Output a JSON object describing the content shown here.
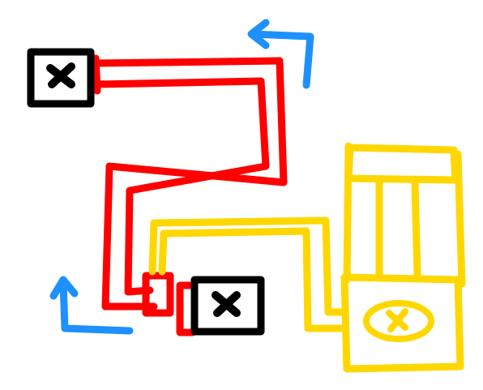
{
  "colors": {
    "background": "#ffffff",
    "red_pipe": "#ff0000",
    "yellow_pipe": "#ffd700",
    "blue_arrow": "#1e90ff",
    "box_outline": "#000000"
  },
  "icons": {
    "box_top_left": "close-x-icon",
    "box_bottom_middle": "close-x-icon",
    "device_right": "x-circle-icon",
    "arrows": "arrow-icon"
  }
}
